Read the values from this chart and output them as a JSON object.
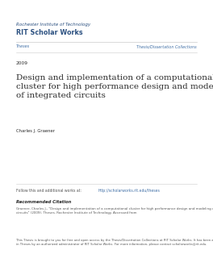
{
  "bg_color": "#ffffff",
  "header_inst": "Rochester Institute of Technology",
  "header_title": "RIT Scholar Works",
  "header_color": "#2b5080",
  "nav_left": "Theses",
  "nav_right": "Thesis/Dissertation Collections",
  "nav_color": "#4472a8",
  "year": "2009",
  "main_title": "Design and implementation of a computational\ncluster for high performance design and modeling\nof integrated circuits",
  "author": "Charles J. Graener",
  "follow_text": "Follow this and additional works at: ",
  "follow_link": "http://scholarworks.rit.edu/theses",
  "rec_citation_header": "Recommended Citation",
  "rec_citation_body": "Graener, Charles J., \"Design and implementation of a computational cluster for high performance design and modeling of integrated\ncircuits\" (2009). Theses. Rochester Institute of Technology. Accessed from",
  "footer_text": "This Thesis is brought to you for free and open access by the Thesis/Dissertation Collections at RIT Scholar Works. It has been accepted for inclusion\nin Theses by an authorized administrator of RIT Scholar Works. For more information, please contact scholarworks@rit.edu.",
  "line_color": "#cccccc",
  "text_color": "#2a2a2a",
  "small_text_color": "#555555",
  "figw": 2.64,
  "figh": 3.41,
  "dpi": 100
}
